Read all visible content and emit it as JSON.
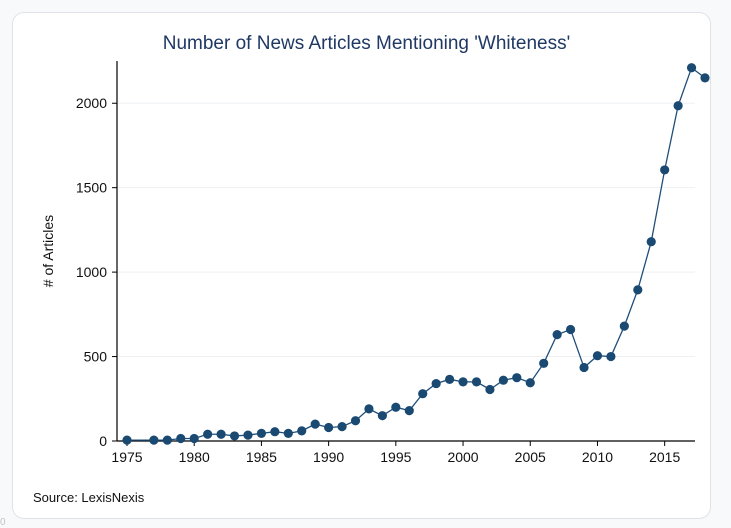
{
  "chart_data": {
    "type": "line",
    "title": "Number of News Articles Mentioning 'Whiteness'",
    "xlabel": "",
    "ylabel": "# of Articles",
    "xlim": [
      1975,
      2018
    ],
    "ylim": [
      0,
      2250
    ],
    "xticks": [
      1975,
      1980,
      1985,
      1990,
      1995,
      2000,
      2005,
      2010,
      2015
    ],
    "yticks": [
      0,
      500,
      1000,
      1500,
      2000
    ],
    "grid": "horizontal",
    "line_color": "#1f4e79",
    "marker_color": "#1a4a72",
    "series": [
      {
        "x": [
          1975,
          1977,
          1978,
          1979,
          1980,
          1981,
          1982,
          1983,
          1984,
          1985,
          1986,
          1987,
          1988,
          1989,
          1990,
          1991,
          1992,
          1993,
          1994,
          1995,
          1996,
          1997,
          1998,
          1999,
          2000,
          2001,
          2002,
          2003,
          2004,
          2005,
          2006,
          2007,
          2008,
          2009,
          2010,
          2011,
          2012,
          2013,
          2014,
          2015,
          2016,
          2017,
          2018
        ],
        "y": [
          5,
          5,
          5,
          15,
          15,
          40,
          40,
          30,
          35,
          45,
          55,
          45,
          60,
          100,
          80,
          85,
          120,
          190,
          150,
          200,
          180,
          280,
          340,
          365,
          350,
          350,
          305,
          360,
          375,
          345,
          460,
          630,
          660,
          435,
          505,
          500,
          680,
          895,
          1180,
          1605,
          1985,
          2210,
          2150
        ]
      }
    ],
    "source": "Source: LexisNexis"
  },
  "peek_glyph": "0"
}
